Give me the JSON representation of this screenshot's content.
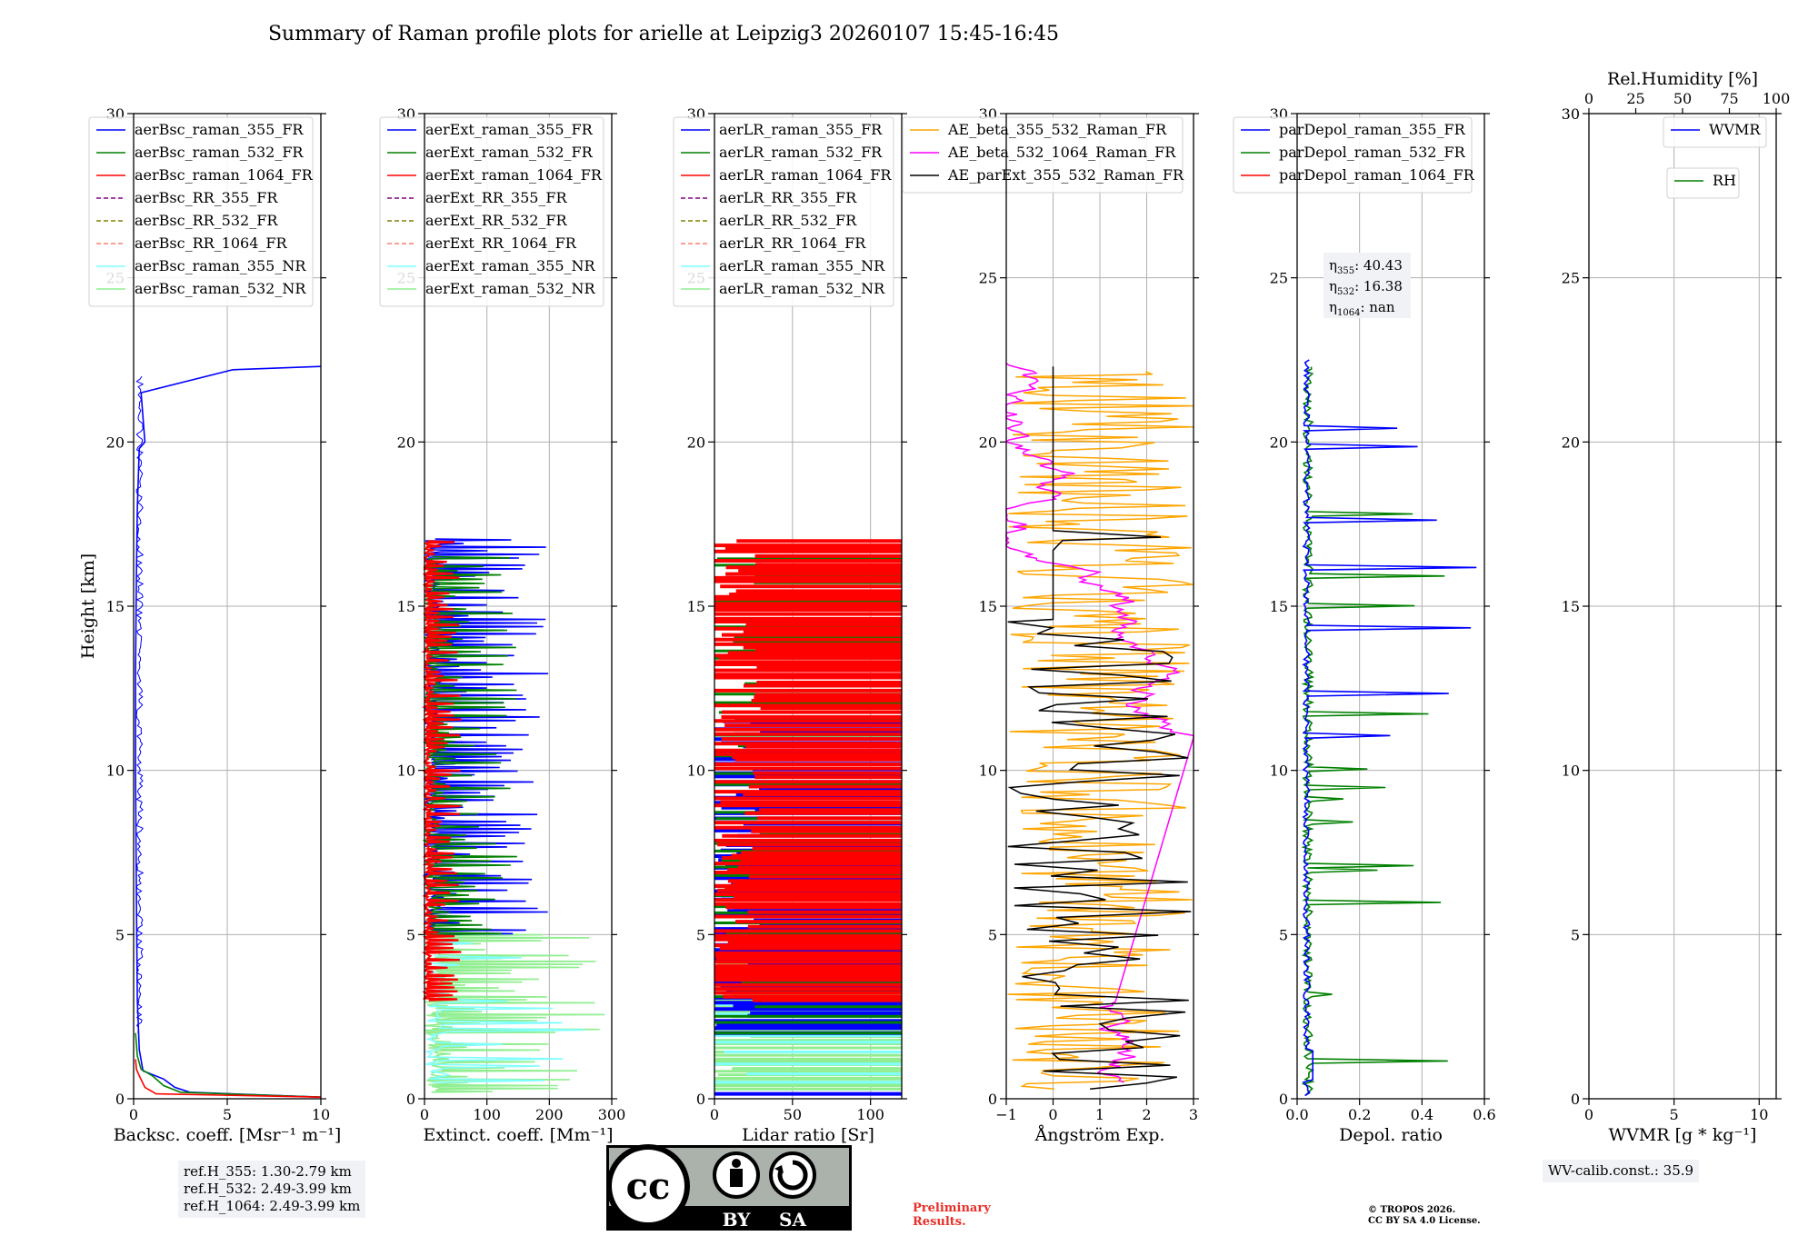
{
  "figure": {
    "title": "Summary of Raman profile plots for arielle at Leipzig3 20260107 15:45-16:45"
  },
  "chart_data": [
    {
      "type": "line",
      "panel": "backscatter",
      "xlabel": "Backsc. coeff. [Msr⁻¹ m⁻¹]",
      "ylabel": "Height [km]",
      "xlim": [
        0,
        10
      ],
      "ylim": [
        0,
        30
      ],
      "xticks": [
        0,
        5,
        10
      ],
      "yticks": [
        0,
        5,
        10,
        15,
        20,
        25,
        30
      ],
      "legend": [
        {
          "name": "aerBsc_raman_355_FR",
          "color": "#0000ff",
          "style": "solid"
        },
        {
          "name": "aerBsc_raman_532_FR",
          "color": "#008000",
          "style": "solid"
        },
        {
          "name": "aerBsc_raman_1064_FR",
          "color": "#ff0000",
          "style": "solid"
        },
        {
          "name": "aerBsc_RR_355_FR",
          "color": "#800080",
          "style": "dashed"
        },
        {
          "name": "aerBsc_RR_532_FR",
          "color": "#808000",
          "style": "dashed"
        },
        {
          "name": "aerBsc_RR_1064_FR",
          "color": "#fa8072",
          "style": "dashed"
        },
        {
          "name": "aerBsc_raman_355_NR",
          "color": "#7fffff",
          "style": "solid"
        },
        {
          "name": "aerBsc_raman_532_NR",
          "color": "#90ee90",
          "style": "solid"
        }
      ],
      "series": [
        {
          "name": "aerBsc_raman_355_FR",
          "x": [
            10,
            3,
            2.2,
            1.6,
            0.5,
            0.3,
            0.2,
            0.15,
            0.1,
            0.1,
            0.15,
            0.2,
            0.3,
            0.6,
            0.4,
            5.3,
            10
          ],
          "y": [
            0.05,
            0.2,
            0.35,
            0.6,
            0.85,
            1.5,
            3,
            6,
            10,
            13,
            16,
            18,
            19.8,
            20,
            21.5,
            22.2,
            22.3
          ]
        },
        {
          "name": "aerBsc_raman_532_FR",
          "x": [
            10,
            2.5,
            1.6,
            1.0,
            0.4,
            0.2,
            0.1
          ],
          "y": [
            0.05,
            0.2,
            0.4,
            0.7,
            0.9,
            1.3,
            2
          ]
        },
        {
          "name": "aerBsc_raman_1064_FR",
          "x": [
            10,
            1.2,
            0.6,
            0.3,
            0.15,
            0.1
          ],
          "y": [
            0.05,
            0.15,
            0.35,
            0.7,
            0.9,
            1.2
          ]
        }
      ]
    },
    {
      "type": "line",
      "panel": "extinction",
      "xlabel": "Extinct. coeff. [Mm⁻¹]",
      "xlim": [
        0,
        300
      ],
      "ylim": [
        0,
        30
      ],
      "xticks": [
        0,
        100,
        200,
        300
      ],
      "yticks": [
        0,
        5,
        10,
        15,
        20,
        25,
        30
      ],
      "legend": [
        {
          "name": "aerExt_raman_355_FR",
          "color": "#0000ff",
          "style": "solid"
        },
        {
          "name": "aerExt_raman_532_FR",
          "color": "#008000",
          "style": "solid"
        },
        {
          "name": "aerExt_raman_1064_FR",
          "color": "#ff0000",
          "style": "solid"
        },
        {
          "name": "aerExt_RR_355_FR",
          "color": "#800080",
          "style": "dashed"
        },
        {
          "name": "aerExt_RR_532_FR",
          "color": "#808000",
          "style": "dashed"
        },
        {
          "name": "aerExt_RR_1064_FR",
          "color": "#fa8072",
          "style": "dashed"
        },
        {
          "name": "aerExt_raman_355_NR",
          "color": "#7fffff",
          "style": "solid"
        },
        {
          "name": "aerExt_raman_532_NR",
          "color": "#90ee90",
          "style": "solid"
        }
      ]
    },
    {
      "type": "line",
      "panel": "lidar-ratio",
      "xlabel": "Lidar ratio [Sr]",
      "xlim": [
        0,
        120
      ],
      "ylim": [
        0,
        30
      ],
      "xticks": [
        0,
        50,
        100
      ],
      "yticks": [
        0,
        5,
        10,
        15,
        20,
        25,
        30
      ],
      "legend": [
        {
          "name": "aerLR_raman_355_FR",
          "color": "#0000ff",
          "style": "solid"
        },
        {
          "name": "aerLR_raman_532_FR",
          "color": "#008000",
          "style": "solid"
        },
        {
          "name": "aerLR_raman_1064_FR",
          "color": "#ff0000",
          "style": "solid"
        },
        {
          "name": "aerLR_RR_355_FR",
          "color": "#800080",
          "style": "dashed"
        },
        {
          "name": "aerLR_RR_532_FR",
          "color": "#808000",
          "style": "dashed"
        },
        {
          "name": "aerLR_RR_1064_FR",
          "color": "#fa8072",
          "style": "dashed"
        },
        {
          "name": "aerLR_raman_355_NR",
          "color": "#7fffff",
          "style": "solid"
        },
        {
          "name": "aerLR_raman_532_NR",
          "color": "#90ee90",
          "style": "solid"
        }
      ]
    },
    {
      "type": "line",
      "panel": "angstrom",
      "xlabel": "Ångström Exp.",
      "xlim": [
        -1,
        3
      ],
      "ylim": [
        0,
        30
      ],
      "xticks": [
        -1,
        0,
        1,
        2,
        3
      ],
      "yticks": [
        0,
        5,
        10,
        15,
        20,
        25,
        30
      ],
      "legend": [
        {
          "name": "AE_beta_355_532_Raman_FR",
          "color": "#ffa500",
          "style": "solid"
        },
        {
          "name": "AE_beta_532_1064_Raman_FR",
          "color": "#ff00ff",
          "style": "solid"
        },
        {
          "name": "AE_parExt_355_532_Raman_FR",
          "color": "#000000",
          "style": "solid"
        }
      ]
    },
    {
      "type": "line",
      "panel": "depolarization",
      "xlabel": "Depol. ratio",
      "xlim": [
        0,
        0.6
      ],
      "ylim": [
        0,
        30
      ],
      "xticks": [
        0.0,
        0.2,
        0.4,
        0.6
      ],
      "xtick_labels": [
        "0.0",
        "0.2",
        "0.4",
        "0.6"
      ],
      "yticks": [
        0,
        5,
        10,
        15,
        20,
        25,
        30
      ],
      "legend": [
        {
          "name": "parDepol_raman_355_FR",
          "color": "#0000ff",
          "style": "solid"
        },
        {
          "name": "parDepol_raman_532_FR",
          "color": "#008000",
          "style": "solid"
        },
        {
          "name": "parDepol_raman_1064_FR",
          "color": "#ff0000",
          "style": "solid"
        }
      ],
      "annotation": {
        "eta355": "40.43",
        "eta532": "16.38",
        "eta1064": "nan"
      }
    },
    {
      "type": "line",
      "panel": "water-vapor",
      "xlabel": "WVMR [g * kg⁻¹]",
      "xlim": [
        0,
        11
      ],
      "ylim": [
        0,
        30
      ],
      "xticks": [
        0,
        5,
        10
      ],
      "yticks": [
        0,
        5,
        10,
        15,
        20,
        25,
        30
      ],
      "top_xlabel": "Rel.Humidity [%]",
      "top_xlim": [
        0,
        100
      ],
      "top_xticks": [
        0,
        25,
        50,
        75,
        100
      ],
      "legend": [
        {
          "name": "WVMR",
          "color": "#0000ff",
          "style": "solid"
        },
        {
          "name": "RH",
          "color": "#008000",
          "style": "solid"
        }
      ]
    }
  ],
  "info": {
    "ref_lines": [
      "ref.H_355: 1.30-2.79 km",
      "ref.H_532: 2.49-3.99 km",
      "ref.H_1064: 2.49-3.99 km"
    ],
    "wv_calib": "WV-calib.const.: 35.9"
  },
  "footer": {
    "cc_left": "BY",
    "cc_right": "SA",
    "prelim_line1": "Preliminary",
    "prelim_line2": "Results.",
    "copyright_line1": "© TROPOS 2026.",
    "copyright_line2": "CC BY SA 4.0 License."
  },
  "colors": {
    "blue": "#0000ff",
    "green": "#008000",
    "red": "#ff0000",
    "cyan": "#7fffff",
    "lightgreen": "#90ee90",
    "orange": "#ffa500",
    "magenta": "#ff00ff",
    "black": "#000000",
    "grid": "#b0b0b0",
    "prelim": "#e8302a"
  }
}
